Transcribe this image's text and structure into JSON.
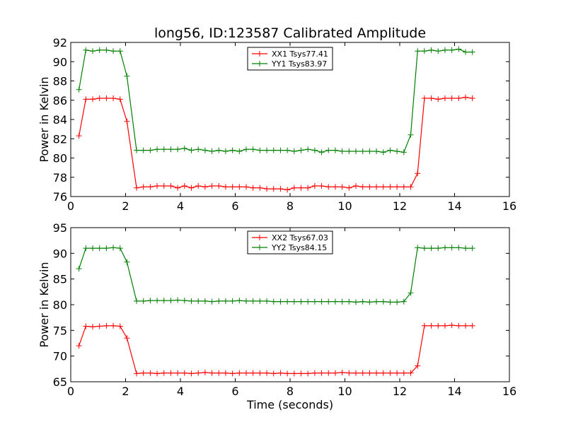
{
  "figure": {
    "title": "long56, ID:123587 Calibrated Amplitude"
  },
  "chart_data": [
    {
      "type": "line",
      "title": "long56, ID:123587 Calibrated Amplitude",
      "xlabel": "",
      "ylabel": "Power in Kelvin",
      "xlim": [
        0,
        16
      ],
      "ylim": [
        76,
        92
      ],
      "xticks": [
        0,
        2,
        4,
        6,
        8,
        10,
        12,
        14,
        16
      ],
      "yticks": [
        76,
        78,
        80,
        82,
        84,
        86,
        88,
        90,
        92
      ],
      "grid": false,
      "legend": "top-center",
      "marker": "+",
      "x": [
        0.3,
        0.55,
        0.8,
        1.05,
        1.3,
        1.55,
        1.8,
        2.05,
        2.4,
        2.65,
        2.9,
        3.15,
        3.4,
        3.65,
        3.9,
        4.15,
        4.4,
        4.65,
        4.9,
        5.15,
        5.4,
        5.65,
        5.9,
        6.15,
        6.4,
        6.65,
        6.9,
        7.15,
        7.4,
        7.65,
        7.9,
        8.15,
        8.4,
        8.65,
        8.9,
        9.15,
        9.4,
        9.65,
        9.9,
        10.15,
        10.4,
        10.65,
        10.9,
        11.15,
        11.4,
        11.65,
        11.9,
        12.15,
        12.4,
        12.65,
        12.9,
        13.15,
        13.4,
        13.65,
        13.9,
        14.15,
        14.4,
        14.65
      ],
      "series": [
        {
          "name": "XX1 Tsys77.41",
          "color": "#ff0000",
          "values": [
            82.3,
            86.1,
            86.1,
            86.2,
            86.2,
            86.2,
            86.1,
            83.8,
            76.9,
            77.0,
            77.0,
            77.1,
            77.1,
            77.1,
            76.9,
            77.1,
            76.9,
            77.1,
            77.0,
            77.1,
            77.1,
            77.0,
            77.0,
            77.0,
            77.0,
            76.9,
            76.9,
            76.8,
            76.8,
            76.8,
            76.7,
            76.9,
            76.9,
            76.9,
            77.1,
            77.1,
            77.0,
            77.0,
            77.0,
            76.9,
            77.1,
            77.0,
            77.0,
            77.0,
            77.0,
            77.0,
            77.0,
            77.0,
            77.0,
            78.4,
            86.2,
            86.2,
            86.1,
            86.2,
            86.2,
            86.2,
            86.3,
            86.2
          ]
        },
        {
          "name": "YY1 Tsys83.97",
          "color": "#008000",
          "values": [
            87.1,
            91.2,
            91.1,
            91.2,
            91.2,
            91.1,
            91.1,
            88.5,
            80.8,
            80.8,
            80.8,
            80.9,
            80.9,
            80.9,
            80.9,
            81.0,
            80.8,
            80.9,
            80.8,
            80.7,
            80.8,
            80.7,
            80.8,
            80.7,
            80.9,
            80.9,
            80.8,
            80.8,
            80.8,
            80.8,
            80.8,
            80.7,
            80.8,
            80.9,
            80.8,
            80.6,
            80.8,
            80.8,
            80.7,
            80.7,
            80.7,
            80.7,
            80.7,
            80.7,
            80.6,
            80.8,
            80.7,
            80.6,
            82.4,
            91.1,
            91.1,
            91.2,
            91.1,
            91.2,
            91.2,
            91.3,
            91.0,
            91.0
          ]
        }
      ]
    },
    {
      "type": "line",
      "title": "",
      "xlabel": "Time (seconds)",
      "ylabel": "Power in Kelvin",
      "xlim": [
        0,
        16
      ],
      "ylim": [
        65,
        95
      ],
      "xticks": [
        0,
        2,
        4,
        6,
        8,
        10,
        12,
        14,
        16
      ],
      "yticks": [
        65,
        70,
        75,
        80,
        85,
        90,
        95
      ],
      "grid": false,
      "legend": "top-center",
      "marker": "+",
      "x": [
        0.3,
        0.55,
        0.8,
        1.05,
        1.3,
        1.55,
        1.8,
        2.05,
        2.4,
        2.65,
        2.9,
        3.15,
        3.4,
        3.65,
        3.9,
        4.15,
        4.4,
        4.65,
        4.9,
        5.15,
        5.4,
        5.65,
        5.9,
        6.15,
        6.4,
        6.65,
        6.9,
        7.15,
        7.4,
        7.65,
        7.9,
        8.15,
        8.4,
        8.65,
        8.9,
        9.15,
        9.4,
        9.65,
        9.9,
        10.15,
        10.4,
        10.65,
        10.9,
        11.15,
        11.4,
        11.65,
        11.9,
        12.15,
        12.4,
        12.65,
        12.9,
        13.15,
        13.4,
        13.65,
        13.9,
        14.15,
        14.4,
        14.65
      ],
      "series": [
        {
          "name": "XX2 Tsys67.03",
          "color": "#ff0000",
          "values": [
            72.0,
            75.8,
            75.7,
            75.8,
            75.9,
            75.9,
            75.8,
            73.5,
            66.6,
            66.7,
            66.7,
            66.6,
            66.7,
            66.7,
            66.7,
            66.7,
            66.6,
            66.7,
            66.8,
            66.7,
            66.7,
            66.7,
            66.6,
            66.7,
            66.7,
            66.7,
            66.7,
            66.7,
            66.6,
            66.7,
            66.6,
            66.6,
            66.6,
            66.6,
            66.7,
            66.7,
            66.7,
            66.7,
            66.8,
            66.7,
            66.7,
            66.7,
            66.7,
            66.7,
            66.7,
            66.7,
            66.7,
            66.7,
            66.7,
            68.1,
            75.9,
            75.9,
            75.9,
            75.9,
            76.0,
            75.9,
            75.9,
            75.9
          ]
        },
        {
          "name": "YY2 Tsys84.15",
          "color": "#008000",
          "values": [
            87.0,
            91.0,
            91.0,
            91.0,
            91.0,
            91.1,
            91.0,
            88.3,
            80.7,
            80.7,
            80.8,
            80.8,
            80.8,
            80.8,
            80.9,
            80.8,
            80.7,
            80.7,
            80.7,
            80.6,
            80.7,
            80.7,
            80.7,
            80.8,
            80.7,
            80.7,
            80.7,
            80.7,
            80.6,
            80.6,
            80.6,
            80.6,
            80.6,
            80.6,
            80.6,
            80.6,
            80.6,
            80.6,
            80.6,
            80.6,
            80.5,
            80.6,
            80.5,
            80.6,
            80.6,
            80.5,
            80.5,
            80.6,
            82.3,
            91.1,
            91.0,
            91.0,
            91.0,
            91.1,
            91.1,
            91.1,
            91.0,
            91.0
          ]
        }
      ]
    }
  ]
}
